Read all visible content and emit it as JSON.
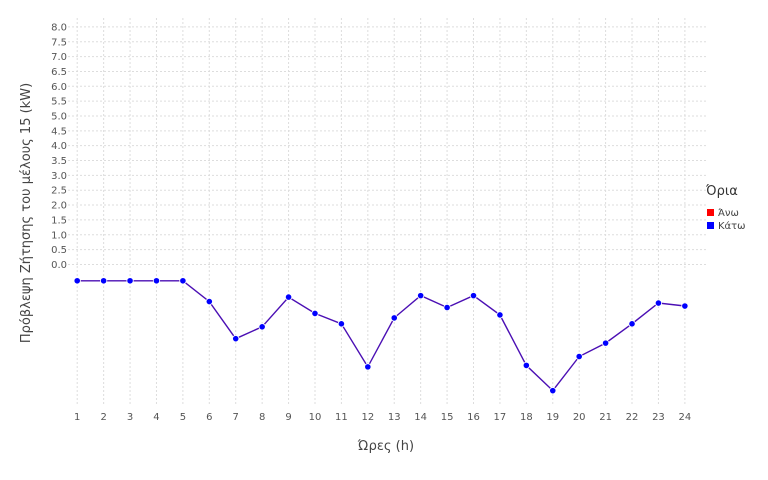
{
  "chart_data": {
    "type": "line",
    "title": "",
    "xlabel": "Ώρες (h)",
    "ylabel": "Πρόβλεψη Ζήτησης του μέλους 15 (kW)",
    "x": [
      1,
      2,
      3,
      4,
      5,
      6,
      7,
      8,
      9,
      10,
      11,
      12,
      13,
      14,
      15,
      16,
      17,
      18,
      19,
      20,
      21,
      22,
      23,
      24
    ],
    "x_tick_labels": [
      "1",
      "2",
      "3",
      "4",
      "5",
      "6",
      "7",
      "8",
      "9",
      "10",
      "11",
      "12",
      "13",
      "14",
      "15",
      "16",
      "17",
      "18",
      "19",
      "20",
      "21",
      "22",
      "23",
      "24"
    ],
    "y_tick_labels": [
      "0.0",
      "0.5",
      "1.0",
      "1.5",
      "2.0",
      "2.5",
      "3.0",
      "3.5",
      "4.0",
      "4.5",
      "5.0",
      "5.5",
      "6.0",
      "6.5",
      "7.0",
      "7.5",
      "8.0"
    ],
    "y_ticks": [
      0,
      0.5,
      1,
      1.5,
      2,
      2.5,
      3,
      3.5,
      4,
      4.5,
      5,
      5.5,
      6,
      6.5,
      7,
      7.5,
      8
    ],
    "ylim": [
      -4.7,
      8.3
    ],
    "grid": true,
    "legend_title": "Όρια",
    "legend_position": "right",
    "series": [
      {
        "name": "Κάτω",
        "color": "#0000ff",
        "line_color": "#4b0fb4",
        "values": [
          -0.55,
          -0.55,
          -0.55,
          -0.55,
          -0.55,
          -1.25,
          -2.5,
          -2.1,
          -1.1,
          -1.65,
          -2.0,
          -3.45,
          -1.8,
          -1.05,
          -1.45,
          -1.05,
          -1.7,
          -3.4,
          -4.25,
          -3.1,
          -2.65,
          -2.0,
          -1.3,
          -1.4
        ]
      }
    ],
    "legend": [
      {
        "label": "Άνω",
        "color": "#ff0000"
      },
      {
        "label": "Κάτω",
        "color": "#0000ff"
      }
    ]
  }
}
